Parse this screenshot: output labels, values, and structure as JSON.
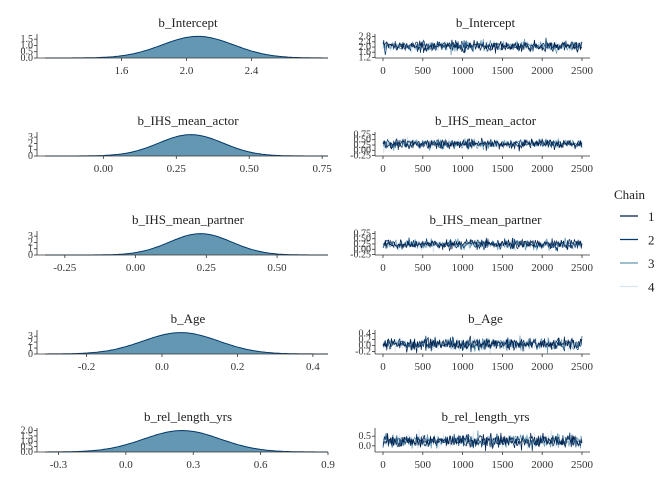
{
  "chart_data": {
    "type": "mcmc_combo",
    "legend": {
      "title": "Chain",
      "labels": [
        "1",
        "2",
        "3",
        "4"
      ],
      "colors": [
        "#011f4b",
        "#03396c",
        "#6497b1",
        "#d5e4ef"
      ],
      "placement": "right"
    },
    "density_fill": "#6497b1",
    "density_line": "#03396c",
    "panels": [
      {
        "parameter": "b_Intercept",
        "density": {
          "title": "b_Intercept",
          "xlim": [
            1.13,
            2.87
          ],
          "xticks": [
            "1.6",
            "2.0",
            "2.4"
          ],
          "xtick_values": [
            1.6,
            2.0,
            2.4
          ],
          "yticks": [
            "0.0",
            "0.5",
            "1.0",
            "1.5"
          ],
          "ytick_values": [
            0.0,
            0.5,
            1.0,
            1.5
          ],
          "ylim": [
            0,
            1.75
          ],
          "mean": 2.07,
          "sd": 0.22,
          "peak": 1.72
        },
        "trace": {
          "title": "b_Intercept",
          "xlim": [
            -60,
            2560
          ],
          "xticks": [
            "0",
            "500",
            "1000",
            "1500",
            "2000",
            "2500"
          ],
          "xtick_values": [
            0,
            500,
            1000,
            1500,
            2000,
            2500
          ],
          "yticks": [
            "1.2",
            "1.6",
            "2.0",
            "2.4",
            "2.8"
          ],
          "ytick_values": [
            1.2,
            1.6,
            2.0,
            2.4,
            2.8
          ],
          "ylim": [
            1.15,
            2.85
          ],
          "mean": 2.07,
          "sd": 0.2
        }
      },
      {
        "parameter": "b_IHS_mean_actor",
        "density": {
          "title": "b_IHS_mean_actor",
          "xlim": [
            -0.2,
            0.77
          ],
          "xticks": [
            "0.00",
            "0.25",
            "0.50",
            "0.75"
          ],
          "xtick_values": [
            0.0,
            0.25,
            0.5,
            0.75
          ],
          "yticks": [
            "0",
            "1",
            "2",
            "3"
          ],
          "ytick_values": [
            0,
            1,
            2,
            3
          ],
          "ylim": [
            0,
            3.5
          ],
          "mean": 0.3,
          "sd": 0.11,
          "peak": 3.4
        },
        "trace": {
          "title": "b_IHS_mean_actor",
          "xlim": [
            -60,
            2560
          ],
          "xticks": [
            "0",
            "500",
            "1000",
            "1500",
            "2000",
            "2500"
          ],
          "xtick_values": [
            0,
            500,
            1000,
            1500,
            2000,
            2500
          ],
          "yticks": [
            "-0.25",
            "0.00",
            "0.25",
            "0.50",
            "0.75"
          ],
          "ytick_values": [
            -0.25,
            0.0,
            0.25,
            0.5,
            0.75
          ],
          "ylim": [
            -0.27,
            0.77
          ],
          "mean": 0.3,
          "sd": 0.11
        }
      },
      {
        "parameter": "b_IHS_mean_partner",
        "density": {
          "title": "b_IHS_mean_partner",
          "xlim": [
            -0.32,
            0.68
          ],
          "xticks": [
            "-0.25",
            "0.00",
            "0.25",
            "0.50"
          ],
          "xtick_values": [
            -0.25,
            0.0,
            0.25,
            0.5
          ],
          "yticks": [
            "0",
            "1",
            "2",
            "3"
          ],
          "ytick_values": [
            0,
            1,
            2,
            3
          ],
          "ylim": [
            0,
            3.5
          ],
          "mean": 0.23,
          "sd": 0.11,
          "peak": 3.4
        },
        "trace": {
          "title": "b_IHS_mean_partner",
          "xlim": [
            -60,
            2560
          ],
          "xticks": [
            "0",
            "500",
            "1000",
            "1500",
            "2000",
            "2500"
          ],
          "xtick_values": [
            0,
            500,
            1000,
            1500,
            2000,
            2500
          ],
          "yticks": [
            "-0.25",
            "0.00",
            "0.25",
            "0.50",
            "0.75"
          ],
          "ytick_values": [
            -0.25,
            0.0,
            0.25,
            0.5,
            0.75
          ],
          "ylim": [
            -0.27,
            0.77
          ],
          "mean": 0.23,
          "sd": 0.11
        }
      },
      {
        "parameter": "b_Age",
        "density": {
          "title": "b_Age",
          "xlim": [
            -0.31,
            0.44
          ],
          "xticks": [
            "-0.2",
            "0.0",
            "0.2",
            "0.4"
          ],
          "xtick_values": [
            -0.2,
            0.0,
            0.2,
            0.4
          ],
          "yticks": [
            "0",
            "1",
            "2",
            "3"
          ],
          "ytick_values": [
            0,
            1,
            2,
            3
          ],
          "ylim": [
            0,
            3.7
          ],
          "mean": 0.05,
          "sd": 0.1,
          "peak": 3.6
        },
        "trace": {
          "title": "b_Age",
          "xlim": [
            -60,
            2560
          ],
          "xticks": [
            "0",
            "500",
            "1000",
            "1500",
            "2000",
            "2500"
          ],
          "xtick_values": [
            0,
            500,
            1000,
            1500,
            2000,
            2500
          ],
          "yticks": [
            "-0.2",
            "0.0",
            "0.2",
            "0.4"
          ],
          "ytick_values": [
            -0.2,
            0.0,
            0.2,
            0.4
          ],
          "ylim": [
            -0.28,
            0.45
          ],
          "mean": 0.05,
          "sd": 0.1
        }
      },
      {
        "parameter": "b_rel_length_yrs",
        "density": {
          "title": "b_rel_length_yrs",
          "xlim": [
            -0.36,
            0.9
          ],
          "xticks": [
            "-0.3",
            "0.0",
            "0.3",
            "0.6",
            "0.9"
          ],
          "xtick_values": [
            -0.3,
            0.0,
            0.3,
            0.6,
            0.9
          ],
          "yticks": [
            "0.0",
            "0.5",
            "1.0",
            "1.5",
            "2.0"
          ],
          "ytick_values": [
            0.0,
            0.5,
            1.0,
            1.5,
            2.0
          ],
          "ylim": [
            0,
            2.05
          ],
          "mean": 0.25,
          "sd": 0.17,
          "peak": 2.0
        },
        "trace": {
          "title": "b_rel_length_yrs",
          "xlim": [
            -60,
            2560
          ],
          "xticks": [
            "0",
            "500",
            "1000",
            "1500",
            "2000",
            "2500"
          ],
          "xtick_values": [
            0,
            500,
            1000,
            1500,
            2000,
            2500
          ],
          "yticks": [
            "0.0",
            "0.5"
          ],
          "ytick_values": [
            0.0,
            0.5
          ],
          "ylim": [
            -0.32,
            0.82
          ],
          "mean": 0.25,
          "sd": 0.17
        }
      }
    ]
  }
}
